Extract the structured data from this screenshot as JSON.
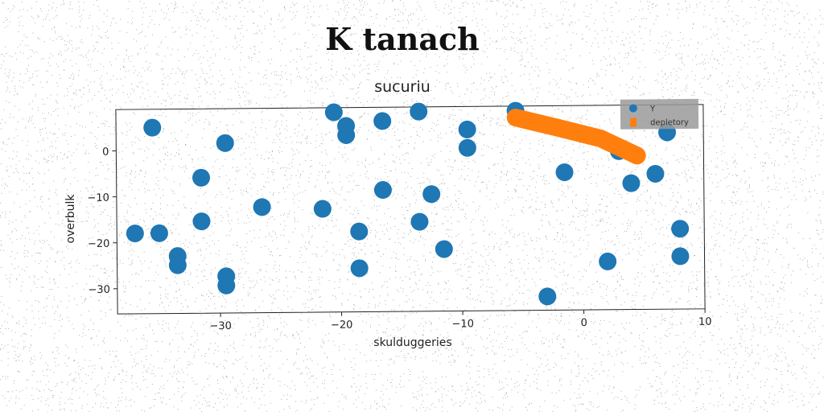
{
  "page_title": "K tanach",
  "chart_data": {
    "type": "scatter",
    "title": "sucuriu",
    "xlabel": "skulduggeries",
    "ylabel": "overbulk",
    "xlim": [
      -38.5,
      10
    ],
    "ylim": [
      -35.5,
      9
    ],
    "xticks": [
      -30,
      -20,
      -10,
      0,
      10
    ],
    "yticks": [
      0,
      -10,
      -20,
      -30
    ],
    "grid": false,
    "legend_position": "top-right",
    "series": [
      {
        "name": "Y",
        "color": "#1f77b4",
        "marker": "circle",
        "points": [
          {
            "x": -35.5,
            "y": 5
          },
          {
            "x": -29.5,
            "y": 1.5
          },
          {
            "x": -31.5,
            "y": -6
          },
          {
            "x": -37,
            "y": -18
          },
          {
            "x": -35,
            "y": -18
          },
          {
            "x": -31.5,
            "y": -15.5
          },
          {
            "x": -33.5,
            "y": -23
          },
          {
            "x": -33.5,
            "y": -25
          },
          {
            "x": -29.5,
            "y": -27.5
          },
          {
            "x": -29.5,
            "y": -29.5
          },
          {
            "x": -26.5,
            "y": -12.5
          },
          {
            "x": -21.5,
            "y": -13
          },
          {
            "x": -20.5,
            "y": 8
          },
          {
            "x": -19.5,
            "y": 5
          },
          {
            "x": -19.5,
            "y": 3
          },
          {
            "x": -18.5,
            "y": -18
          },
          {
            "x": -18.5,
            "y": -26
          },
          {
            "x": -16.5,
            "y": 6
          },
          {
            "x": -16.5,
            "y": -9
          },
          {
            "x": -13.5,
            "y": 8
          },
          {
            "x": -13.5,
            "y": -16
          },
          {
            "x": -12.5,
            "y": -10
          },
          {
            "x": -11.5,
            "y": -22
          },
          {
            "x": -9.5,
            "y": 4
          },
          {
            "x": -9.5,
            "y": 0
          },
          {
            "x": -5.5,
            "y": 8
          },
          {
            "x": -3,
            "y": -32.5
          },
          {
            "x": -1.5,
            "y": -5.5
          },
          {
            "x": 2,
            "y": -25
          },
          {
            "x": 3,
            "y": -1
          },
          {
            "x": 4,
            "y": -8
          },
          {
            "x": 6,
            "y": -6
          },
          {
            "x": 7,
            "y": 3
          },
          {
            "x": 8,
            "y": -18
          },
          {
            "x": 8,
            "y": -24
          }
        ]
      },
      {
        "name": "depletory",
        "color": "#ff7f0e",
        "marker": "line",
        "points": [
          {
            "x": -5.5,
            "y": 6.5
          },
          {
            "x": -2,
            "y": 4.2
          },
          {
            "x": 1.5,
            "y": 1.8
          },
          {
            "x": 4.5,
            "y": -2
          }
        ]
      }
    ]
  }
}
